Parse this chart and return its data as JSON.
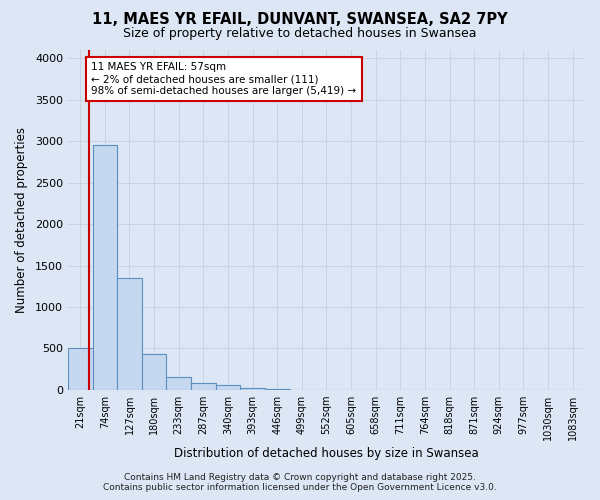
{
  "title_line1": "11, MAES YR EFAIL, DUNVANT, SWANSEA, SA2 7PY",
  "title_line2": "Size of property relative to detached houses in Swansea",
  "xlabel": "Distribution of detached houses by size in Swansea",
  "ylabel": "Number of detached properties",
  "categories": [
    "21sqm",
    "74sqm",
    "127sqm",
    "180sqm",
    "233sqm",
    "287sqm",
    "340sqm",
    "393sqm",
    "446sqm",
    "499sqm",
    "552sqm",
    "605sqm",
    "658sqm",
    "711sqm",
    "764sqm",
    "818sqm",
    "871sqm",
    "924sqm",
    "977sqm",
    "1030sqm",
    "1083sqm"
  ],
  "values": [
    500,
    2960,
    1350,
    430,
    160,
    85,
    55,
    25,
    10,
    0,
    0,
    0,
    0,
    0,
    0,
    0,
    0,
    0,
    0,
    0,
    0
  ],
  "bar_color": "#c5d8f0",
  "bar_edge_color": "#5b8fbf",
  "grid_color": "#c8d4e4",
  "background_color": "#dce6f5",
  "annotation_text": "11 MAES YR EFAIL: 57sqm\n← 2% of detached houses are smaller (111)\n98% of semi-detached houses are larger (5,419) →",
  "annotation_box_facecolor": "#ffffff",
  "annotation_box_edgecolor": "#cc0000",
  "vline_color": "#cc0000",
  "vline_x": 0.35,
  "ylim_max": 4100,
  "yticks": [
    0,
    500,
    1000,
    1500,
    2000,
    2500,
    3000,
    3500,
    4000
  ],
  "footer_line1": "Contains HM Land Registry data © Crown copyright and database right 2025.",
  "footer_line2": "Contains public sector information licensed under the Open Government Licence v3.0."
}
